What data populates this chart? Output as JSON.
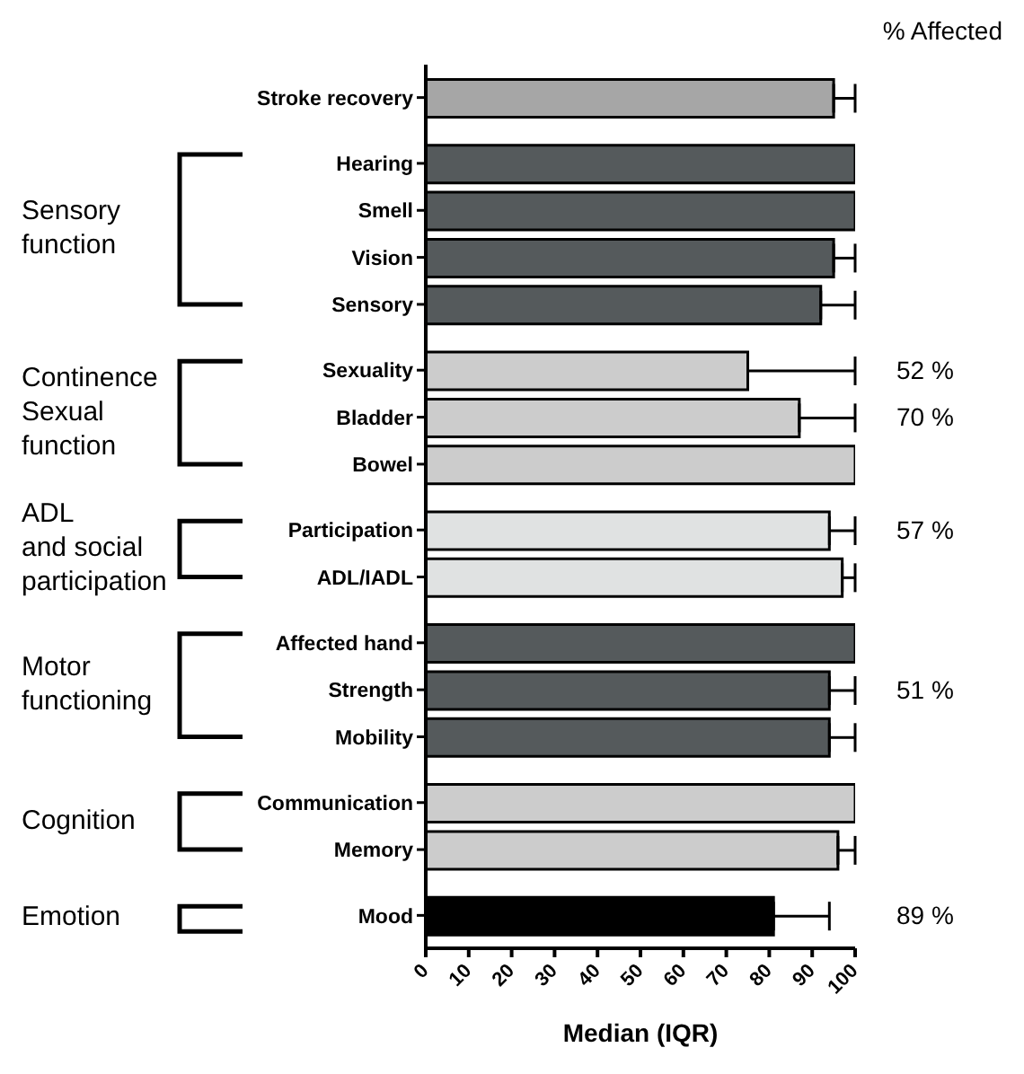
{
  "chart_data": {
    "type": "bar",
    "orientation": "horizontal",
    "xlabel": "Median (IQR)",
    "categories": [
      "Stroke recovery",
      "Hearing",
      "Smell",
      "Vision",
      "Sensory",
      "Sexuality",
      "Bladder",
      "Bowel",
      "Participation",
      "ADL/IADL",
      "Affected hand",
      "Strength",
      "Mobility",
      "Communication",
      "Memory",
      "Mood"
    ],
    "values": [
      95,
      100,
      100,
      95,
      92,
      75,
      87,
      100,
      94,
      97,
      100,
      94,
      94,
      100,
      96,
      81
    ],
    "errors": [
      [
        95,
        100
      ],
      null,
      null,
      [
        95,
        100
      ],
      [
        92,
        100
      ],
      [
        75,
        100
      ],
      [
        87,
        100
      ],
      null,
      [
        94,
        100
      ],
      [
        97,
        100
      ],
      null,
      [
        94,
        100
      ],
      [
        94,
        100
      ],
      null,
      [
        96,
        100
      ],
      [
        81,
        94
      ]
    ],
    "colors": [
      "#a6a6a6",
      "#555a5c",
      "#555a5c",
      "#555a5c",
      "#555a5c",
      "#cccccc",
      "#cccccc",
      "#cccccc",
      "#e0e2e2",
      "#e0e2e2",
      "#555a5c",
      "#555a5c",
      "#555a5c",
      "#cccccc",
      "#cccccc",
      "#000000"
    ],
    "xlim": [
      0,
      100
    ],
    "xticks": [
      0,
      10,
      20,
      30,
      40,
      50,
      60,
      70,
      80,
      90,
      100
    ],
    "grid": false,
    "legend": false,
    "annotations": [
      "Sensory function",
      "Continence Sexual function",
      "ADL and social participation",
      "Motor functioning",
      "Cognition",
      "Emotion",
      "% Affected",
      "52 %",
      "70 %",
      "57 %",
      "51 %",
      "89 %"
    ]
  }
}
